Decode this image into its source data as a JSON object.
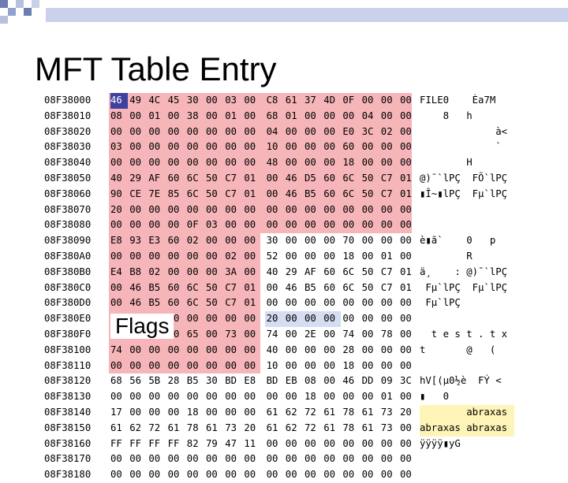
{
  "title": "MFT Table Entry",
  "callout": "Flags",
  "rows": [
    {
      "addr": "08F38000",
      "hex": [
        "46",
        "49",
        "4C",
        "45",
        "30",
        "00",
        "03",
        "00",
        "C8",
        "61",
        "37",
        "4D",
        "0F",
        "00",
        "00",
        "00"
      ],
      "ascii": "FILE0    Èa7M"
    },
    {
      "addr": "08F38010",
      "hex": [
        "08",
        "00",
        "01",
        "00",
        "38",
        "00",
        "01",
        "00",
        "68",
        "01",
        "00",
        "00",
        "00",
        "04",
        "00",
        "00"
      ],
      "ascii": "    8   h"
    },
    {
      "addr": "08F38020",
      "hex": [
        "00",
        "00",
        "00",
        "00",
        "00",
        "00",
        "00",
        "00",
        "04",
        "00",
        "00",
        "00",
        "E0",
        "3C",
        "02",
        "00"
      ],
      "ascii": "             à<"
    },
    {
      "addr": "08F38030",
      "hex": [
        "03",
        "00",
        "00",
        "00",
        "00",
        "00",
        "00",
        "00",
        "10",
        "00",
        "00",
        "00",
        "60",
        "00",
        "00",
        "00"
      ],
      "ascii": "             `"
    },
    {
      "addr": "08F38040",
      "hex": [
        "00",
        "00",
        "00",
        "00",
        "00",
        "00",
        "00",
        "00",
        "48",
        "00",
        "00",
        "00",
        "18",
        "00",
        "00",
        "00"
      ],
      "ascii": "        H"
    },
    {
      "addr": "08F38050",
      "hex": [
        "40",
        "29",
        "AF",
        "60",
        "6C",
        "50",
        "C7",
        "01",
        "00",
        "46",
        "D5",
        "60",
        "6C",
        "50",
        "C7",
        "01"
      ],
      "ascii": "@)¯`lPÇ  FÕ`lPÇ"
    },
    {
      "addr": "08F38060",
      "hex": [
        "90",
        "CE",
        "7E",
        "85",
        "6C",
        "50",
        "C7",
        "01",
        "00",
        "46",
        "B5",
        "60",
        "6C",
        "50",
        "C7",
        "01"
      ],
      "ascii": "▮Î~▮lPÇ  Fµ`lPÇ"
    },
    {
      "addr": "08F38070",
      "hex": [
        "20",
        "00",
        "00",
        "00",
        "00",
        "00",
        "00",
        "00",
        "00",
        "00",
        "00",
        "00",
        "00",
        "00",
        "00",
        "00"
      ],
      "ascii": ""
    },
    {
      "addr": "08F38080",
      "hex": [
        "00",
        "00",
        "00",
        "00",
        "0F",
        "03",
        "00",
        "00",
        "00",
        "00",
        "00",
        "00",
        "00",
        "00",
        "00",
        "00"
      ],
      "ascii": ""
    },
    {
      "addr": "08F38090",
      "hex": [
        "E8",
        "93",
        "E3",
        "60",
        "02",
        "00",
        "00",
        "00",
        "30",
        "00",
        "00",
        "00",
        "70",
        "00",
        "00",
        "00"
      ],
      "ascii": "è▮ã`    0   p"
    },
    {
      "addr": "08F380A0",
      "hex": [
        "00",
        "00",
        "00",
        "00",
        "00",
        "00",
        "02",
        "00",
        "52",
        "00",
        "00",
        "00",
        "18",
        "00",
        "01",
        "00"
      ],
      "ascii": "        R"
    },
    {
      "addr": "08F380B0",
      "hex": [
        "E4",
        "B8",
        "02",
        "00",
        "00",
        "00",
        "3A",
        "00",
        "40",
        "29",
        "AF",
        "60",
        "6C",
        "50",
        "C7",
        "01"
      ],
      "ascii": "ä¸    : @)¯`lPÇ"
    },
    {
      "addr": "08F380C0",
      "hex": [
        "00",
        "46",
        "B5",
        "60",
        "6C",
        "50",
        "C7",
        "01",
        "00",
        "46",
        "B5",
        "60",
        "6C",
        "50",
        "C7",
        "01"
      ],
      "ascii": " Fµ`lPÇ  Fµ`lPÇ"
    },
    {
      "addr": "08F380D0",
      "hex": [
        "00",
        "46",
        "B5",
        "60",
        "6C",
        "50",
        "C7",
        "01",
        "00",
        "00",
        "00",
        "00",
        "00",
        "00",
        "00",
        "00"
      ],
      "ascii": " Fµ`lPÇ"
    },
    {
      "addr": "08F380E0",
      "hex": [
        "00",
        "00",
        "00",
        "00",
        "00",
        "00",
        "00",
        "00",
        "20",
        "00",
        "00",
        "00",
        "00",
        "00",
        "00",
        "00"
      ],
      "ascii": ""
    },
    {
      "addr": "08F380F0",
      "hex": [
        "08",
        "03",
        "74",
        "00",
        "65",
        "00",
        "73",
        "00",
        "74",
        "00",
        "2E",
        "00",
        "74",
        "00",
        "78",
        "00"
      ],
      "ascii": "  t e s t . t x"
    },
    {
      "addr": "08F38100",
      "hex": [
        "74",
        "00",
        "00",
        "00",
        "00",
        "00",
        "00",
        "00",
        "40",
        "00",
        "00",
        "00",
        "28",
        "00",
        "00",
        "00"
      ],
      "ascii": "t       @   ("
    },
    {
      "addr": "08F38110",
      "hex": [
        "00",
        "00",
        "00",
        "00",
        "00",
        "00",
        "00",
        "00",
        "10",
        "00",
        "00",
        "00",
        "18",
        "00",
        "00",
        "00"
      ],
      "ascii": ""
    },
    {
      "addr": "08F38120",
      "hex": [
        "68",
        "56",
        "5B",
        "28",
        "B5",
        "30",
        "BD",
        "E8",
        "BD",
        "EB",
        "08",
        "00",
        "46",
        "DD",
        "09",
        "3C"
      ],
      "ascii": "hV[(µ0½è  FÝ <"
    },
    {
      "addr": "08F38130",
      "hex": [
        "00",
        "00",
        "00",
        "00",
        "00",
        "00",
        "00",
        "00",
        "00",
        "00",
        "18",
        "00",
        "00",
        "00",
        "01",
        "00"
      ],
      "ascii": "▮   0"
    },
    {
      "addr": "08F38140",
      "hex": [
        "17",
        "00",
        "00",
        "00",
        "18",
        "00",
        "00",
        "00",
        "61",
        "62",
        "72",
        "61",
        "78",
        "61",
        "73",
        "20"
      ],
      "ascii": "        abraxas"
    },
    {
      "addr": "08F38150",
      "hex": [
        "61",
        "62",
        "72",
        "61",
        "78",
        "61",
        "73",
        "20",
        "61",
        "62",
        "72",
        "61",
        "78",
        "61",
        "73",
        "00"
      ],
      "ascii": "abraxas abraxas"
    },
    {
      "addr": "08F38160",
      "hex": [
        "FF",
        "FF",
        "FF",
        "FF",
        "82",
        "79",
        "47",
        "11",
        "00",
        "00",
        "00",
        "00",
        "00",
        "00",
        "00",
        "00"
      ],
      "ascii": "ÿÿÿÿ▮yG"
    },
    {
      "addr": "08F38170",
      "hex": [
        "00",
        "00",
        "00",
        "00",
        "00",
        "00",
        "00",
        "00",
        "00",
        "00",
        "00",
        "00",
        "00",
        "00",
        "00",
        "00"
      ],
      "ascii": ""
    },
    {
      "addr": "08F38180",
      "hex": [
        "00",
        "00",
        "00",
        "00",
        "00",
        "00",
        "00",
        "00",
        "00",
        "00",
        "00",
        "00",
        "00",
        "00",
        "00",
        "00"
      ],
      "ascii": ""
    }
  ]
}
